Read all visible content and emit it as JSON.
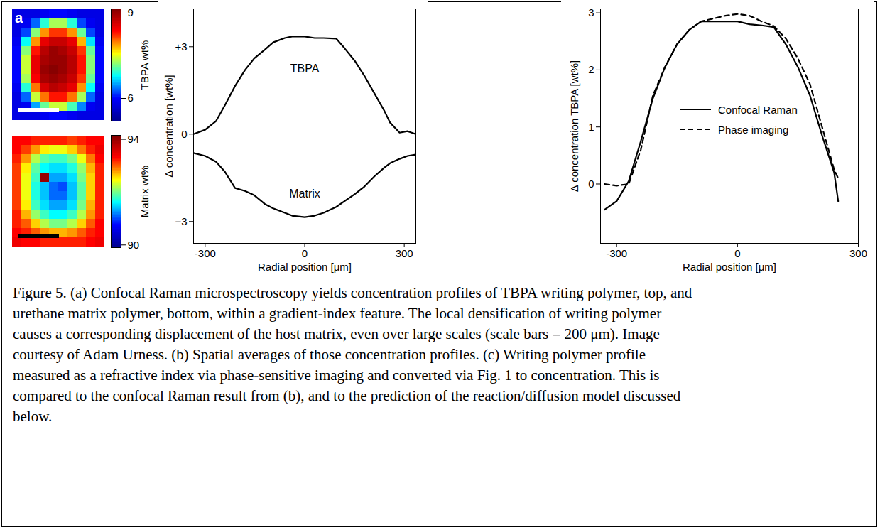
{
  "chart_data": [
    {
      "type": "heatmap",
      "annotations": [
        "a"
      ],
      "cells": [
        [
          5.8,
          5.8,
          5.8,
          5.9,
          6.0,
          6.0,
          5.9,
          5.8,
          5.8,
          5.8
        ],
        [
          5.8,
          5.9,
          6.3,
          6.9,
          7.3,
          7.3,
          6.9,
          6.2,
          5.9,
          5.8
        ],
        [
          5.8,
          6.2,
          7.2,
          7.9,
          8.2,
          8.2,
          7.9,
          7.1,
          6.2,
          5.8
        ],
        [
          5.9,
          6.8,
          7.9,
          8.5,
          8.7,
          8.7,
          8.5,
          7.8,
          6.7,
          5.9
        ],
        [
          6.0,
          7.2,
          8.3,
          8.8,
          9.0,
          8.9,
          8.7,
          8.2,
          7.1,
          6.0
        ],
        [
          6.0,
          7.4,
          8.5,
          8.9,
          9.0,
          9.0,
          8.8,
          8.3,
          7.2,
          6.0
        ],
        [
          6.0,
          7.4,
          8.5,
          9.0,
          9.1,
          9.0,
          8.8,
          8.3,
          7.2,
          6.0
        ],
        [
          6.0,
          7.3,
          8.4,
          8.9,
          9.0,
          8.9,
          8.7,
          8.2,
          7.1,
          6.0
        ],
        [
          5.9,
          6.9,
          8.0,
          8.6,
          8.8,
          8.7,
          8.5,
          7.9,
          6.8,
          5.9
        ],
        [
          5.8,
          6.3,
          7.4,
          8.0,
          8.3,
          8.3,
          8.0,
          7.3,
          6.3,
          5.8
        ],
        [
          5.8,
          5.9,
          6.5,
          7.1,
          7.4,
          7.4,
          7.0,
          6.4,
          5.9,
          5.8
        ],
        [
          5.8,
          5.8,
          5.8,
          5.9,
          6.0,
          6.0,
          5.9,
          5.8,
          5.8,
          5.8
        ]
      ],
      "colorbar": {
        "label": "TBPA wt%",
        "range": [
          5.2,
          9.15
        ],
        "ticks": [
          6,
          9
        ]
      },
      "tick_labels": false
    },
    {
      "type": "heatmap",
      "cells": [
        [
          93.3,
          93.3,
          93.2,
          93.2,
          93.2,
          93.2,
          93.1,
          93.2,
          93.3,
          93.3
        ],
        [
          93.3,
          93.1,
          92.8,
          92.5,
          92.4,
          92.4,
          92.6,
          92.9,
          93.2,
          93.4
        ],
        [
          93.2,
          92.8,
          92.2,
          91.9,
          91.8,
          91.8,
          92.0,
          92.4,
          92.9,
          93.3
        ],
        [
          93.1,
          92.5,
          91.9,
          91.6,
          91.5,
          91.5,
          91.7,
          92.1,
          92.7,
          93.2
        ],
        [
          93.1,
          92.4,
          91.8,
          94.0,
          91.3,
          91.3,
          91.5,
          92.0,
          92.6,
          93.2
        ],
        [
          93.1,
          92.4,
          91.7,
          91.4,
          91.1,
          91.0,
          91.4,
          91.9,
          92.6,
          93.2
        ],
        [
          93.1,
          92.4,
          91.7,
          91.4,
          91.1,
          91.1,
          91.4,
          91.9,
          92.6,
          93.2
        ],
        [
          93.1,
          92.5,
          91.8,
          91.5,
          91.3,
          91.3,
          91.5,
          92.0,
          92.7,
          93.2
        ],
        [
          93.2,
          92.7,
          92.1,
          91.8,
          91.6,
          91.6,
          91.8,
          92.2,
          92.8,
          93.2
        ],
        [
          93.2,
          93.0,
          92.6,
          92.2,
          92.0,
          92.0,
          92.2,
          92.6,
          93.0,
          93.3
        ],
        [
          93.3,
          93.2,
          93.0,
          92.8,
          92.7,
          92.7,
          92.8,
          93.0,
          93.2,
          93.3
        ],
        [
          93.4,
          93.3,
          93.3,
          93.2,
          93.2,
          93.2,
          93.2,
          93.2,
          93.3,
          93.4
        ]
      ],
      "colorbar": {
        "label": "Matrix wt%",
        "range": [
          89.9,
          94.15
        ],
        "ticks": [
          90,
          94
        ]
      },
      "tick_labels": false
    },
    {
      "type": "line",
      "xlabel": "Radial position [μm]",
      "ylabel": "Δ concentration [wt%]",
      "x": [
        -335,
        -300,
        -267,
        -240,
        -210,
        -180,
        -152,
        -120,
        -95,
        -60,
        -38,
        0,
        30,
        57,
        95,
        120,
        152,
        180,
        210,
        240,
        257,
        286,
        310,
        335
      ],
      "series": [
        {
          "name": "TBPA",
          "color": "#000000",
          "line_style": "solid",
          "label_x": 0,
          "label_y": 2.25,
          "values": [
            0.0,
            0.15,
            0.45,
            1.0,
            1.65,
            2.2,
            2.6,
            2.9,
            3.15,
            3.3,
            3.35,
            3.35,
            3.3,
            3.3,
            3.28,
            2.95,
            2.5,
            2.0,
            1.4,
            0.8,
            0.4,
            0.05,
            0.1,
            0.0
          ]
        },
        {
          "name": "Matrix",
          "color": "#000000",
          "line_style": "solid",
          "label_x": 0,
          "label_y": -2.05,
          "values": [
            -0.65,
            -0.75,
            -0.95,
            -1.3,
            -1.85,
            -1.95,
            -2.1,
            -2.4,
            -2.55,
            -2.7,
            -2.8,
            -2.85,
            -2.8,
            -2.7,
            -2.5,
            -2.3,
            -2.05,
            -1.8,
            -1.45,
            -1.15,
            -1.0,
            -0.85,
            -0.75,
            -0.7
          ]
        }
      ],
      "xlim": [
        -335,
        335
      ],
      "ylim": [
        -3.75,
        4.3
      ],
      "xticks": [
        -300,
        0,
        300
      ],
      "yticks": [
        {
          "value": 3,
          "label": "+3"
        },
        0,
        {
          "value": -3,
          "label": "−3"
        }
      ],
      "grid": false
    },
    {
      "type": "line",
      "xlabel": "Radial position [μm]",
      "ylabel": "Δ concentration TBPA [wt%]",
      "x": [
        -330,
        -300,
        -270,
        -240,
        -210,
        -180,
        -150,
        -120,
        -90,
        -60,
        -30,
        0,
        30,
        60,
        90,
        120,
        150,
        180,
        210,
        240,
        250
      ],
      "series": [
        {
          "name": "Confocal Raman",
          "color": "#000000",
          "line_style": "solid",
          "values": [
            -0.45,
            -0.3,
            0.05,
            0.75,
            1.5,
            2.05,
            2.45,
            2.7,
            2.85,
            2.85,
            2.85,
            2.85,
            2.8,
            2.78,
            2.75,
            2.45,
            2.05,
            1.55,
            0.85,
            0.2,
            -0.3
          ]
        },
        {
          "name": "Phase imaging",
          "color": "#000000",
          "line_style": "dashed",
          "values": [
            0.0,
            -0.03,
            0.0,
            0.6,
            1.55,
            2.05,
            2.45,
            2.7,
            2.85,
            2.9,
            2.95,
            2.98,
            2.95,
            2.85,
            2.77,
            2.55,
            2.2,
            1.75,
            1.0,
            0.25,
            0.1
          ]
        }
      ],
      "xlim": [
        -340,
        300
      ],
      "ylim": [
        -1.04,
        3.07
      ],
      "xticks": [
        -300,
        0,
        300
      ],
      "yticks": [
        0,
        1,
        2,
        3
      ],
      "legend": "right",
      "grid": false
    }
  ],
  "caption": "Figure 5.  (a) Confocal Raman microspectroscopy yields concentration profiles of TBPA writing polymer, top, and urethane matrix polymer, bottom, within a gradient-index feature.  The local densification of writing polymer causes a corresponding displacement of the host matrix, even over large scales (scale bars = 200 μm).  Image courtesy of Adam Urness.  (b) Spatial averages of those concentration profiles.  (c) Writing polymer profile measured as a refractive index via phase-sensitive imaging and converted via Fig. 1 to concentration.  This is compared to the confocal Raman result from (b), and to the prediction of the reaction/diffusion model discussed below."
}
